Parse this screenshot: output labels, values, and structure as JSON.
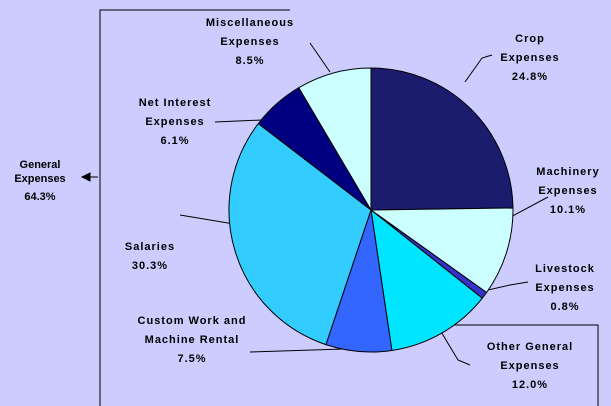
{
  "chart_data": {
    "type": "pie",
    "categories": [
      "Crop Expenses",
      "Machinery Expenses",
      "Livestock Expenses",
      "Other General Expenses",
      "Custom Work and Machine Rental",
      "Salaries",
      "Net Interest Expenses",
      "Miscellaneous Expenses"
    ],
    "values": [
      24.8,
      10.1,
      0.8,
      12.0,
      7.5,
      30.3,
      6.1,
      8.5
    ],
    "value_labels": [
      "24.8%",
      "10.1%",
      "0.8%",
      "12.0%",
      "7.5%",
      "30.3%",
      "6.1%",
      "8.5%"
    ],
    "colors": [
      "#1c1c6e",
      "#ccffff",
      "#3333cc",
      "#00e5ff",
      "#3366ff",
      "#33ccff",
      "#000080",
      "#ccffff"
    ],
    "annotations": [
      {
        "label": "General Expenses",
        "value": 64.3,
        "value_label": "64.3%"
      }
    ]
  }
}
